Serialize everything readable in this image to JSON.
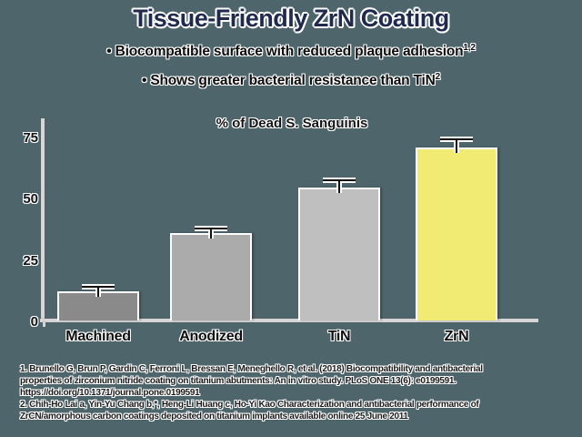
{
  "slide": {
    "title": "Tissue-Friendly ZrN Coating",
    "bullet_char": "•",
    "bullets": [
      {
        "text": "Biocompatible surface with reduced plaque adhesion",
        "ref": "1,2"
      },
      {
        "text": "Shows greater bacterial resistance than TiN",
        "ref": "2"
      }
    ]
  },
  "chart_data": {
    "type": "bar",
    "title": "% of Dead S. Sanguinis",
    "categories": [
      "Machined",
      "Anodized",
      "TiN",
      "ZrN"
    ],
    "values": [
      12,
      35.5,
      54,
      70.5
    ],
    "errors": [
      1.5,
      1.5,
      2.5,
      3
    ],
    "bar_colors": [
      "#8a8a8a",
      "#ababab",
      "#bfbfbf",
      "#f1eb74"
    ],
    "highlighted_category": "ZrN",
    "xlabel": "",
    "ylabel": "",
    "ylim": [
      0,
      80
    ],
    "yticks": [
      0,
      25,
      50,
      75
    ],
    "grid": false,
    "legend": null
  },
  "footnotes": [
    "1. Brunello G, Brun P, Gardin C, Ferroni L, Bressan E, Meneghello R, et al. (2018) Biocompatibility and antibacterial\nproperties of zirconium nitride coating on titanium abutments: An in vitro study. PLoS ONE 13(6): e0199591.\nhttps://doi.org/10.1371/journal.pone.0199591",
    "2. Chih-Ho Lai a, Yin-Yu Chang b,*, Heng-Li Huang c, Ho-Yi Kao Characterization and antibacterial performance of\nZrCN/amorphous carbon coatings deposited on titanium implants available online 25 June 2011"
  ],
  "colors": {
    "background": "#4d656b",
    "title_text": "#1f2a4e",
    "body_text": "#0d0d0d",
    "axis": "#d6d6d6",
    "highlight_bar": "#f1eb74"
  }
}
